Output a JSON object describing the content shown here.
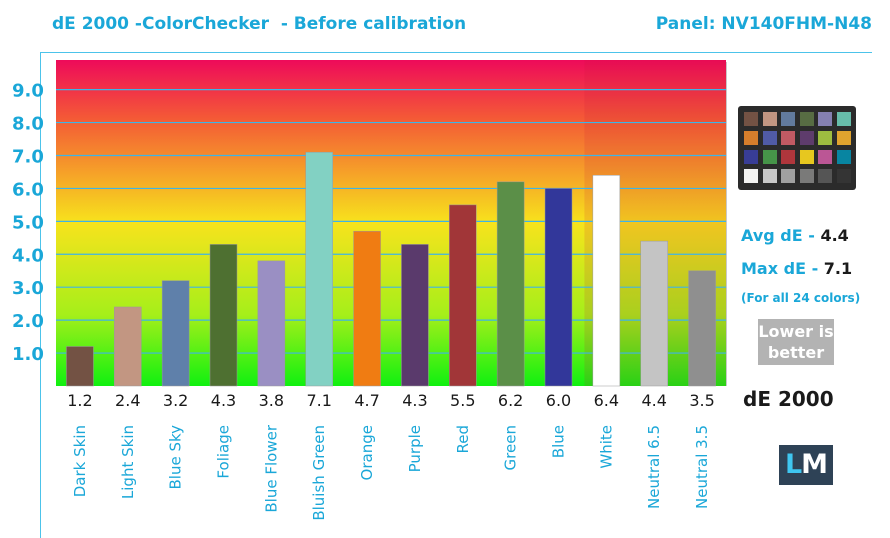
{
  "header": {
    "title": "dE 2000 -ColorChecker  - Before calibration",
    "panel": "Panel: NV140FHM-N48"
  },
  "stats": {
    "avg_label": "Avg dE - ",
    "avg_value": "4.4",
    "max_label": "Max dE - ",
    "max_value": "7.1",
    "note": "(For all 24 colors)",
    "lower_line1": "Lower is",
    "lower_line2": "better",
    "metric": "dE 2000"
  },
  "logo": {
    "left": "L",
    "right": "M"
  },
  "colors": {
    "accent": "#1aa7d8",
    "gradient_top": "#ee0a5a",
    "gradient_mid": "#f7e31c",
    "gradient_bottom": "#10f010"
  },
  "color_checker_swatches": [
    "#735244",
    "#c29682",
    "#627a9d",
    "#576c43",
    "#8580b1",
    "#67bdaa",
    "#d67e2c",
    "#505ba6",
    "#c15a63",
    "#5e3c6c",
    "#9dbc40",
    "#e0a32e",
    "#383d96",
    "#469449",
    "#af363c",
    "#e7c71f",
    "#bb5695",
    "#0885a1",
    "#f3f3f2",
    "#c8c8c8",
    "#a0a0a0",
    "#7a7a79",
    "#555555",
    "#343434"
  ],
  "chart_data": {
    "type": "bar",
    "categories": [
      "Dark Skin",
      "Light Skin",
      "Blue Sky",
      "Foliage",
      "Blue Flower",
      "Bluish Green",
      "Orange",
      "Purple",
      "Red",
      "Green",
      "Blue",
      "White",
      "Neutral 6.5",
      "Neutral 3.5"
    ],
    "values": [
      1.2,
      2.4,
      3.2,
      4.3,
      3.8,
      7.1,
      4.7,
      4.3,
      5.5,
      6.2,
      6.0,
      6.4,
      4.4,
      3.5
    ],
    "value_labels": [
      "1.2",
      "2.4",
      "3.2",
      "4.3",
      "3.8",
      "7.1",
      "4.7",
      "4.3",
      "5.5",
      "6.2",
      "6.0",
      "6.4",
      "4.4",
      "3.5"
    ],
    "bar_colors": [
      "#735244",
      "#c29682",
      "#5f80aa",
      "#4e7031",
      "#9a8fc3",
      "#82d1c3",
      "#f07c12",
      "#5a3a6c",
      "#a13638",
      "#5b8f48",
      "#32379a",
      "#ffffff",
      "#c4c4c4",
      "#8f8f8f"
    ],
    "yticks": [
      "1.0",
      "2.0",
      "3.0",
      "4.0",
      "5.0",
      "6.0",
      "7.0",
      "8.0",
      "9.0"
    ],
    "ylim": [
      0,
      9.9
    ],
    "xlabel": "",
    "ylabel": "",
    "grid": true
  }
}
